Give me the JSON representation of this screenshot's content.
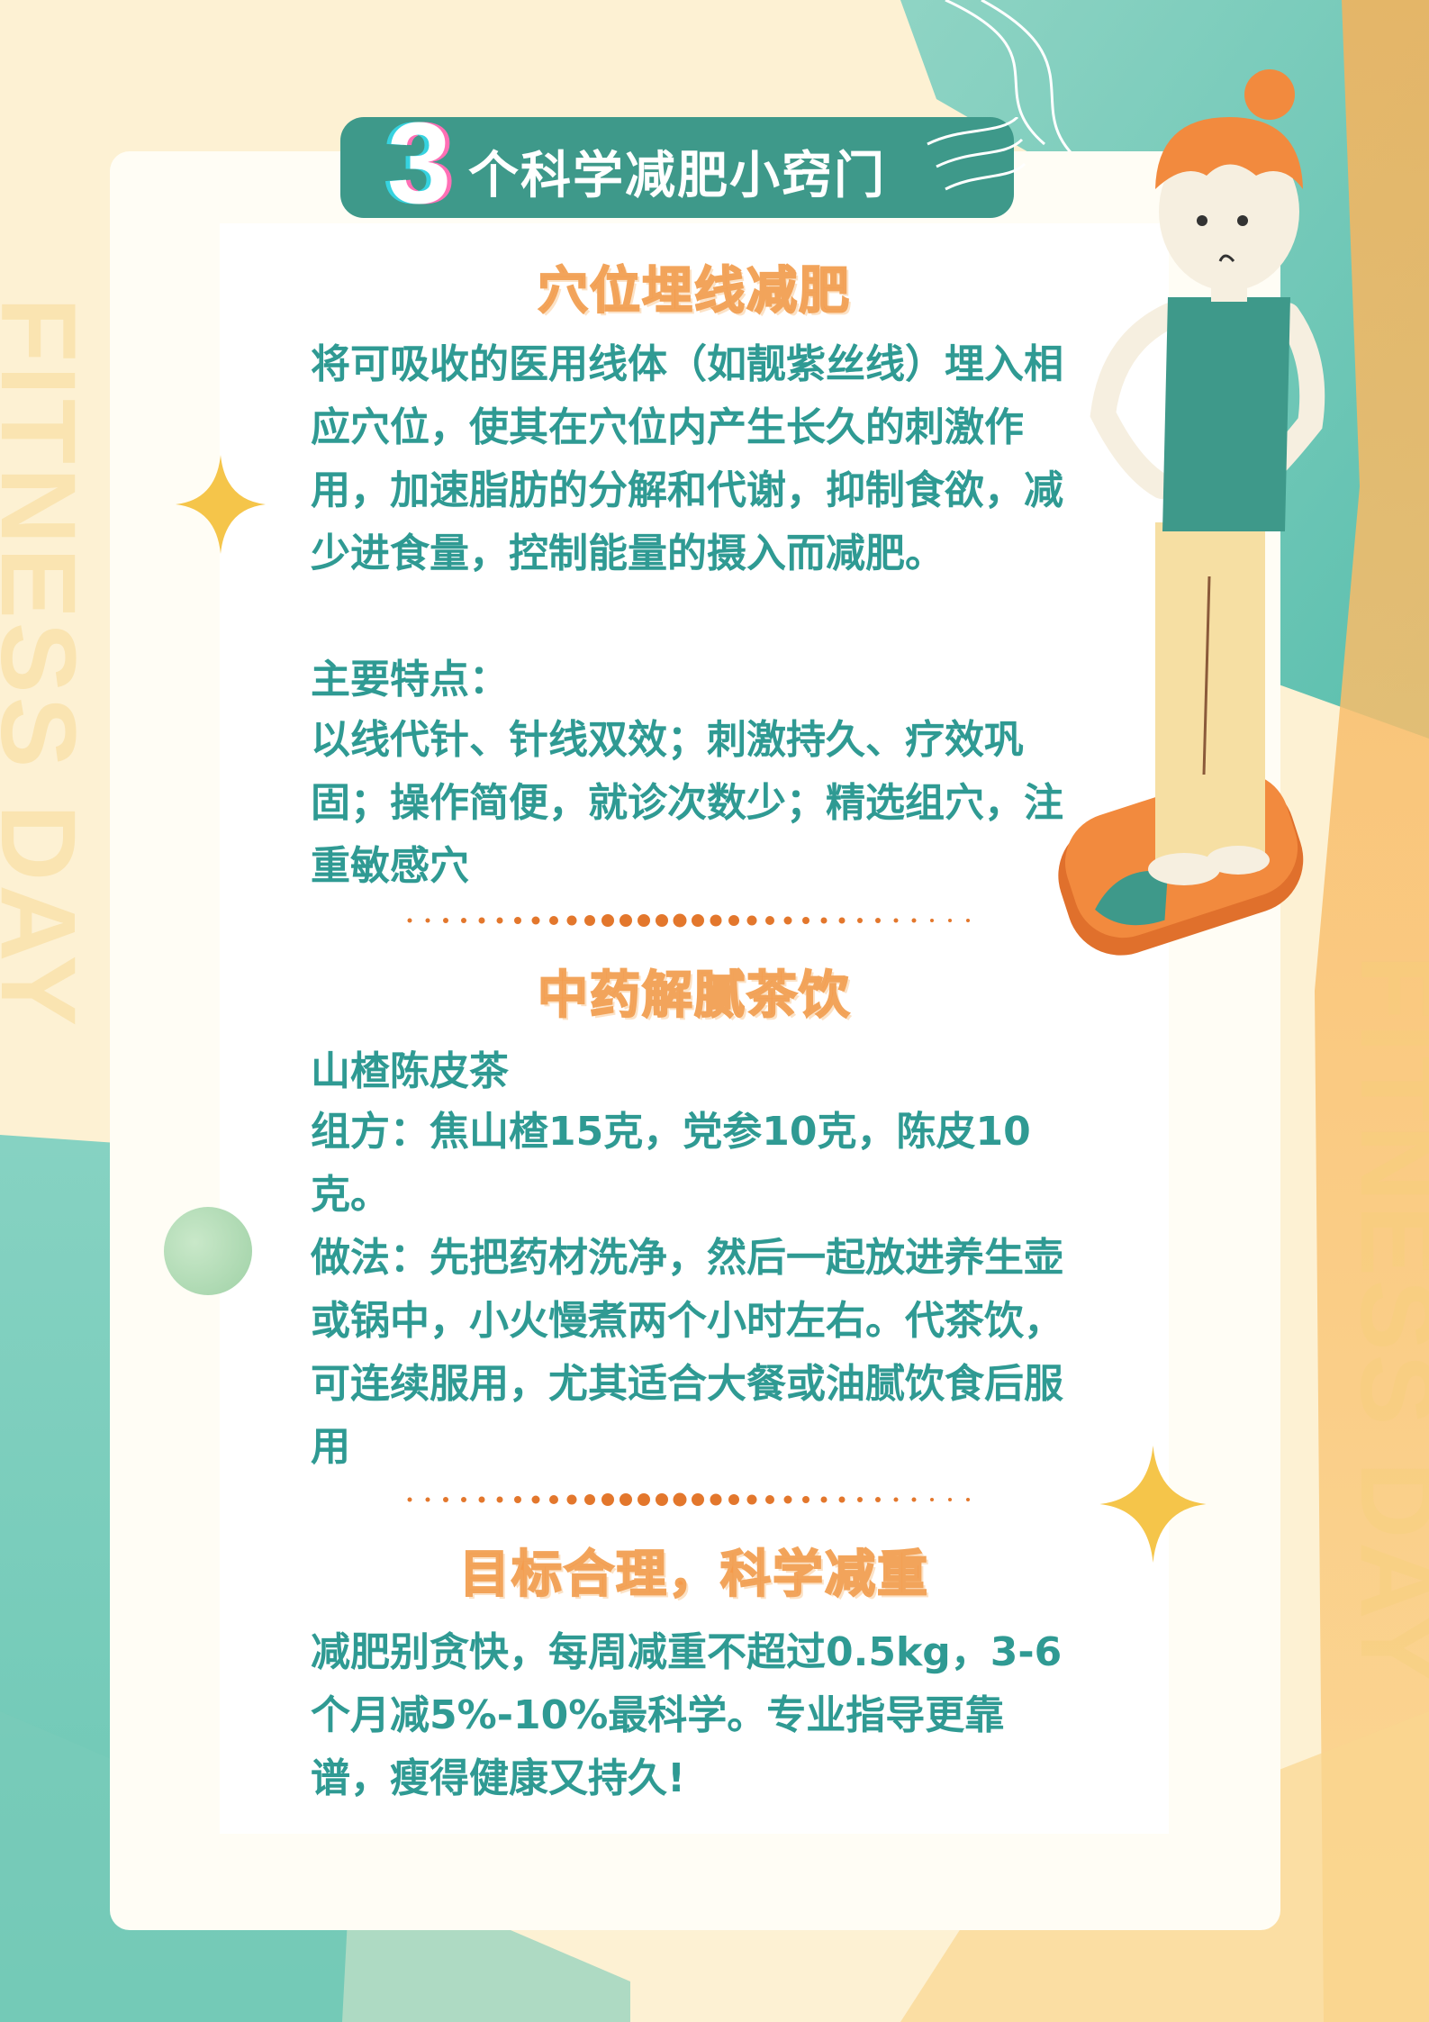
{
  "colors": {
    "teal": "#3e998a",
    "body_text": "#2f9a93",
    "heading_orange": "#f59a4a",
    "sparkle_yellow": "#f5c54a"
  },
  "watermark_text": "FITNESS DAY",
  "title": {
    "number": "3",
    "text": "个科学减肥小窍门"
  },
  "sections": [
    {
      "heading": "穴位埋线减肥",
      "paragraphs": [
        "将可吸收的医用线体（如靓紫丝线）埋入相应穴位，使其在穴位内产生长久的刺激作用，加速脂肪的分解和代谢，抑制食欲，减少进食量，控制能量的摄入而减肥。",
        "主要特点：",
        "以线代针、针线双效；刺激持久、疗效巩固；操作简便，就诊次数少；精选组穴，注重敏感穴"
      ]
    },
    {
      "heading": "中药解腻茶饮",
      "paragraphs": [
        "山楂陈皮茶",
        "组方：焦山楂15克，党参10克，陈皮10克。",
        "做法：先把药材洗净，然后一起放进养生壶或锅中，小火慢煮两个小时左右。代茶饮，可连续服用，尤其适合大餐或油腻饮食后服用"
      ]
    },
    {
      "heading": "目标合理，科学减重",
      "paragraphs": [
        "减肥别贪快，每周减重不超过0.5kg，3-6个月减5%-10%最科学。专业指导更靠谱，瘦得健康又持久!"
      ]
    }
  ]
}
